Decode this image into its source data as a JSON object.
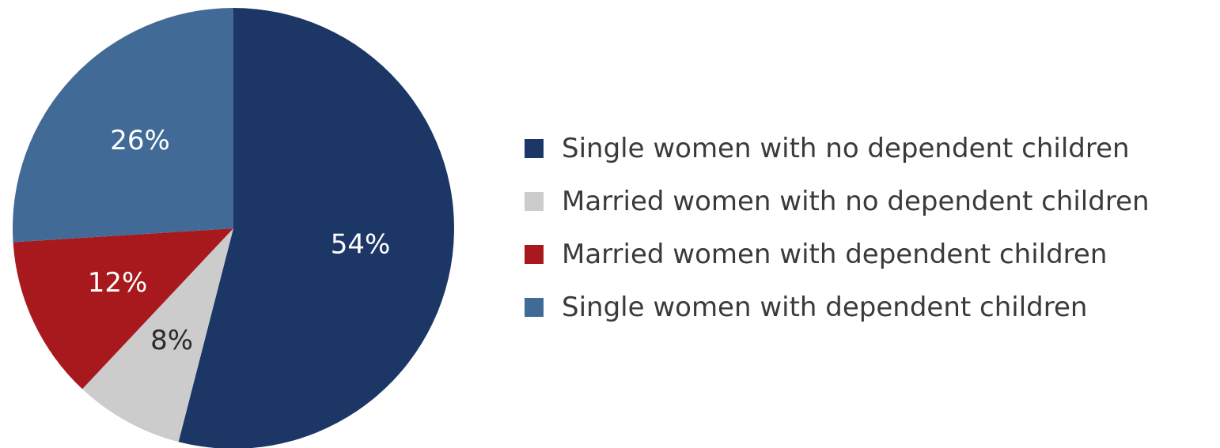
{
  "chart_data": {
    "type": "pie",
    "title": "",
    "legend_position": "right",
    "slices": [
      {
        "name": "Single women with no dependent children",
        "value": 54,
        "label": "54%",
        "color": "#1c3665",
        "label_color": "#ffffff"
      },
      {
        "name": "Married women with no dependent children",
        "value": 8,
        "label": "8%",
        "color": "#cccccc",
        "label_color": "#2b2b2b"
      },
      {
        "name": "Married women with dependent children",
        "value": 12,
        "label": "12%",
        "color": "#a8191d",
        "label_color": "#ffffff"
      },
      {
        "name": "Single women with dependent children",
        "value": 26,
        "label": "26%",
        "color": "#416a96",
        "label_color": "#ffffff"
      }
    ]
  }
}
